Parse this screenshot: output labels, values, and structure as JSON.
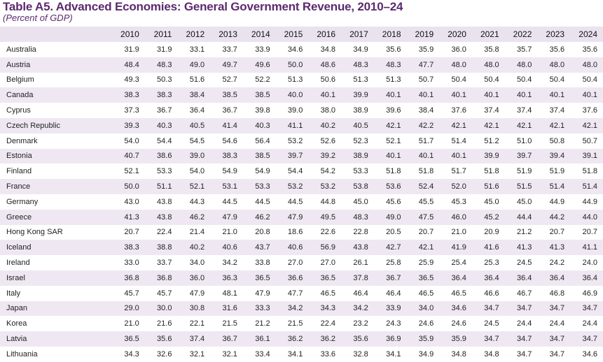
{
  "title": "Table A5. Advanced Economies: General Government Revenue, 2010–24",
  "subtitle": "(Percent of GDP)",
  "years": [
    "2010",
    "2011",
    "2012",
    "2013",
    "2014",
    "2015",
    "2016",
    "2017",
    "2018",
    "2019",
    "2020",
    "2021",
    "2022",
    "2023",
    "2024"
  ],
  "rows": [
    {
      "country": "Australia",
      "values": [
        "31.9",
        "31.9",
        "33.1",
        "33.7",
        "33.9",
        "34.6",
        "34.8",
        "34.9",
        "35.6",
        "35.9",
        "36.0",
        "35.8",
        "35.7",
        "35.6",
        "35.6"
      ]
    },
    {
      "country": "Austria",
      "values": [
        "48.4",
        "48.3",
        "49.0",
        "49.7",
        "49.6",
        "50.0",
        "48.6",
        "48.3",
        "48.3",
        "47.7",
        "48.0",
        "48.0",
        "48.0",
        "48.0",
        "48.0"
      ]
    },
    {
      "country": "Belgium",
      "values": [
        "49.3",
        "50.3",
        "51.6",
        "52.7",
        "52.2",
        "51.3",
        "50.6",
        "51.3",
        "51.3",
        "50.7",
        "50.4",
        "50.4",
        "50.4",
        "50.4",
        "50.4"
      ]
    },
    {
      "country": "Canada",
      "values": [
        "38.3",
        "38.3",
        "38.4",
        "38.5",
        "38.5",
        "40.0",
        "40.1",
        "39.9",
        "40.1",
        "40.1",
        "40.1",
        "40.1",
        "40.1",
        "40.1",
        "40.1"
      ]
    },
    {
      "country": "Cyprus",
      "values": [
        "37.3",
        "36.7",
        "36.4",
        "36.7",
        "39.8",
        "39.0",
        "38.0",
        "38.9",
        "39.6",
        "38.4",
        "37.6",
        "37.4",
        "37.4",
        "37.4",
        "37.6"
      ]
    },
    {
      "country": "Czech Republic",
      "values": [
        "39.3",
        "40.3",
        "40.5",
        "41.4",
        "40.3",
        "41.1",
        "40.2",
        "40.5",
        "42.1",
        "42.2",
        "42.1",
        "42.1",
        "42.1",
        "42.1",
        "42.1"
      ]
    },
    {
      "country": "Denmark",
      "values": [
        "54.0",
        "54.4",
        "54.5",
        "54.6",
        "56.4",
        "53.2",
        "52.6",
        "52.3",
        "52.1",
        "51.7",
        "51.4",
        "51.2",
        "51.0",
        "50.8",
        "50.7"
      ]
    },
    {
      "country": "Estonia",
      "values": [
        "40.7",
        "38.6",
        "39.0",
        "38.3",
        "38.5",
        "39.7",
        "39.2",
        "38.9",
        "40.1",
        "40.1",
        "40.1",
        "39.9",
        "39.7",
        "39.4",
        "39.1"
      ]
    },
    {
      "country": "Finland",
      "values": [
        "52.1",
        "53.3",
        "54.0",
        "54.9",
        "54.9",
        "54.4",
        "54.2",
        "53.3",
        "51.8",
        "51.8",
        "51.7",
        "51.8",
        "51.9",
        "51.9",
        "51.8"
      ]
    },
    {
      "country": "France",
      "values": [
        "50.0",
        "51.1",
        "52.1",
        "53.1",
        "53.3",
        "53.2",
        "53.2",
        "53.8",
        "53.6",
        "52.4",
        "52.0",
        "51.6",
        "51.5",
        "51.4",
        "51.4"
      ]
    },
    {
      "country": "Germany",
      "values": [
        "43.0",
        "43.8",
        "44.3",
        "44.5",
        "44.5",
        "44.5",
        "44.8",
        "45.0",
        "45.6",
        "45.5",
        "45.3",
        "45.0",
        "45.0",
        "44.9",
        "44.9"
      ]
    },
    {
      "country": "Greece",
      "values": [
        "41.3",
        "43.8",
        "46.2",
        "47.9",
        "46.2",
        "47.9",
        "49.5",
        "48.3",
        "49.0",
        "47.5",
        "46.0",
        "45.2",
        "44.4",
        "44.2",
        "44.0"
      ]
    },
    {
      "country": "Hong Kong SAR",
      "values": [
        "20.7",
        "22.4",
        "21.4",
        "21.0",
        "20.8",
        "18.6",
        "22.6",
        "22.8",
        "20.5",
        "20.7",
        "21.0",
        "20.9",
        "21.2",
        "20.7",
        "20.7"
      ]
    },
    {
      "country": "Iceland",
      "values": [
        "38.3",
        "38.8",
        "40.2",
        "40.6",
        "43.7",
        "40.6",
        "56.9",
        "43.8",
        "42.7",
        "42.1",
        "41.9",
        "41.6",
        "41.3",
        "41.3",
        "41.1"
      ]
    },
    {
      "country": "Ireland",
      "values": [
        "33.0",
        "33.7",
        "34.0",
        "34.2",
        "33.8",
        "27.0",
        "27.0",
        "26.1",
        "25.8",
        "25.9",
        "25.4",
        "25.3",
        "24.5",
        "24.2",
        "24.0"
      ]
    },
    {
      "country": "Israel",
      "values": [
        "36.8",
        "36.8",
        "36.0",
        "36.3",
        "36.5",
        "36.6",
        "36.5",
        "37.8",
        "36.7",
        "36.5",
        "36.4",
        "36.4",
        "36.4",
        "36.4",
        "36.4"
      ]
    },
    {
      "country": "Italy",
      "values": [
        "45.7",
        "45.7",
        "47.9",
        "48.1",
        "47.9",
        "47.7",
        "46.5",
        "46.4",
        "46.4",
        "46.5",
        "46.5",
        "46.6",
        "46.7",
        "46.8",
        "46.9"
      ]
    },
    {
      "country": "Japan",
      "values": [
        "29.0",
        "30.0",
        "30.8",
        "31.6",
        "33.3",
        "34.2",
        "34.3",
        "34.2",
        "33.9",
        "34.0",
        "34.6",
        "34.7",
        "34.7",
        "34.7",
        "34.7"
      ]
    },
    {
      "country": "Korea",
      "values": [
        "21.0",
        "21.6",
        "22.1",
        "21.5",
        "21.2",
        "21.5",
        "22.4",
        "23.2",
        "24.3",
        "24.6",
        "24.6",
        "24.5",
        "24.4",
        "24.4",
        "24.4"
      ]
    },
    {
      "country": "Latvia",
      "values": [
        "36.5",
        "35.6",
        "37.4",
        "36.7",
        "36.1",
        "36.2",
        "36.2",
        "35.6",
        "36.9",
        "35.9",
        "35.9",
        "34.7",
        "34.7",
        "34.7",
        "34.7"
      ]
    },
    {
      "country": "Lithuania",
      "values": [
        "34.3",
        "32.6",
        "32.1",
        "32.1",
        "33.4",
        "34.1",
        "33.6",
        "32.8",
        "34.1",
        "34.9",
        "34.8",
        "34.8",
        "34.7",
        "34.7",
        "34.6"
      ]
    }
  ]
}
